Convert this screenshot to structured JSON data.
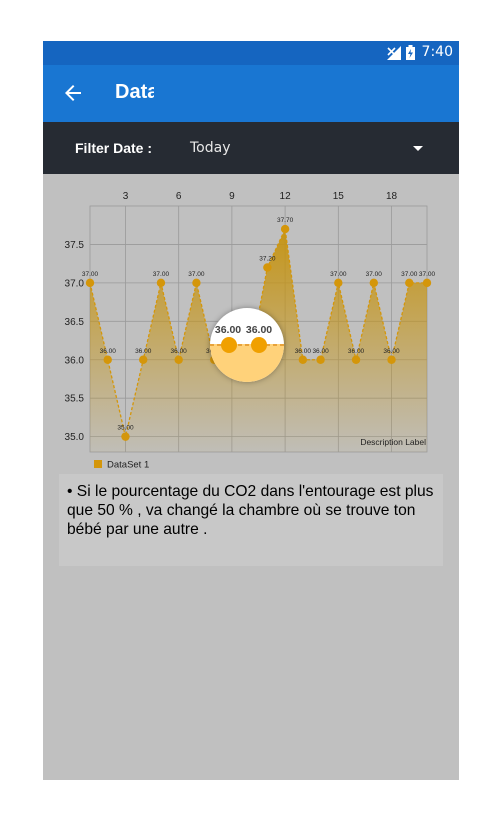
{
  "status_bar": {
    "time": "7:40"
  },
  "app_bar": {
    "title": "Data"
  },
  "filter": {
    "label": "Filter Date :",
    "value": "Today"
  },
  "chart_data": {
    "type": "area",
    "x": [
      1,
      2,
      3,
      4,
      5,
      6,
      7,
      8,
      9,
      10,
      11,
      12,
      13,
      14,
      15,
      16,
      17,
      18,
      19,
      20
    ],
    "x_ticks": [
      3,
      6,
      9,
      12,
      15,
      18
    ],
    "y_ticks": [
      "35.0",
      "35.5",
      "36.0",
      "36.5",
      "37.0",
      "37.5"
    ],
    "ylim": [
      34.8,
      38.0
    ],
    "series": [
      {
        "name": "DataSet 1",
        "values": [
          37.0,
          36.0,
          35.0,
          36.0,
          37.0,
          36.0,
          37.0,
          36.0,
          36.0,
          36.0,
          37.2,
          37.7,
          36.0,
          36.0,
          37.0,
          36.0,
          37.0,
          36.0,
          37.0,
          37.0
        ],
        "labels": [
          "37.00",
          "36.00",
          "35.00",
          "36.00",
          "37.00",
          "36.00",
          "37.00",
          "36.00",
          "36.00",
          "36.00",
          "37.20",
          "37.70",
          "36.00",
          "36.00",
          "37.00",
          "36.00",
          "37.00",
          "36.00",
          "37.00",
          "37.00"
        ]
      }
    ],
    "description": "Description Label",
    "legend": "bottom-left",
    "grid": true,
    "color": "#d4960a",
    "magnifier_labels": [
      "36.00",
      "36.00"
    ]
  },
  "info": {
    "text": "• Si le pourcentage du CO2 dans l'entourage est plus que 50 % , va changé la chambre où se trouve ton bébé par une autre ."
  }
}
